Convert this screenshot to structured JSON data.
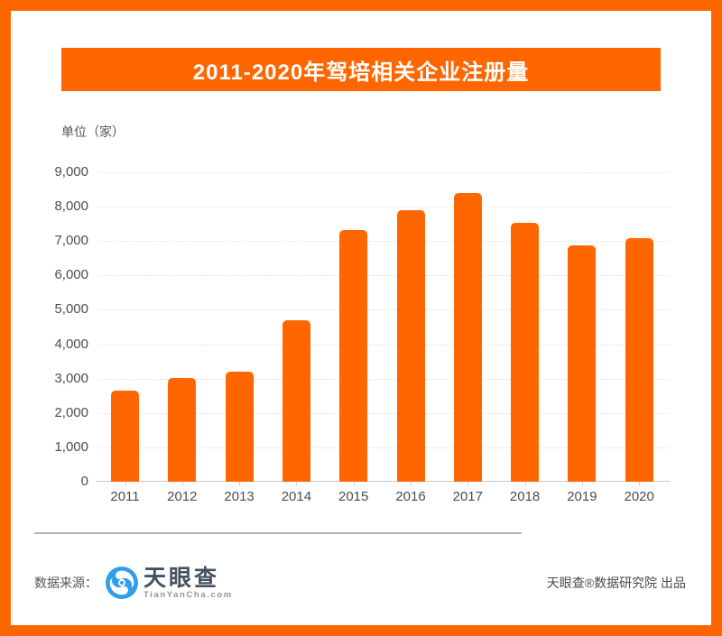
{
  "title": "2011-2020年驾培相关企业注册量",
  "unit_label": "单位（家）",
  "colors": {
    "accent": "#FF6600",
    "bar": "#FF6600",
    "gridline": "#e0e0e0",
    "axis": "#c9c9c9",
    "tick_label": "#4d4d4d",
    "logo_blue": "#2E9FE8",
    "logo_dark": "#44515E",
    "logo_gray": "#8D949C"
  },
  "chart_data": {
    "type": "bar",
    "title": "2011-2020年驾培相关企业注册量",
    "categories": [
      "2011",
      "2012",
      "2013",
      "2014",
      "2015",
      "2016",
      "2017",
      "2018",
      "2019",
      "2020"
    ],
    "values": [
      2660,
      3030,
      3210,
      4700,
      7310,
      7900,
      8390,
      7530,
      6880,
      7090
    ],
    "xlabel": "",
    "ylabel": "单位（家）",
    "ylim": [
      0,
      9000
    ],
    "yticks": [
      0,
      1000,
      2000,
      3000,
      4000,
      5000,
      6000,
      7000,
      8000,
      9000
    ],
    "ytick_labels": [
      "0",
      "1,000",
      "2,000",
      "3,000",
      "4,000",
      "5,000",
      "6,000",
      "7,000",
      "8,000",
      "9,000"
    ],
    "grid": "horizontal dotted",
    "legend": "none",
    "bar_color": "#FF6600"
  },
  "footer": {
    "source_label": "数据来源：",
    "logo_name": "天眼查",
    "logo_domain": "TianYanCha.com",
    "credit": "天眼查®数据研究院 出品"
  }
}
